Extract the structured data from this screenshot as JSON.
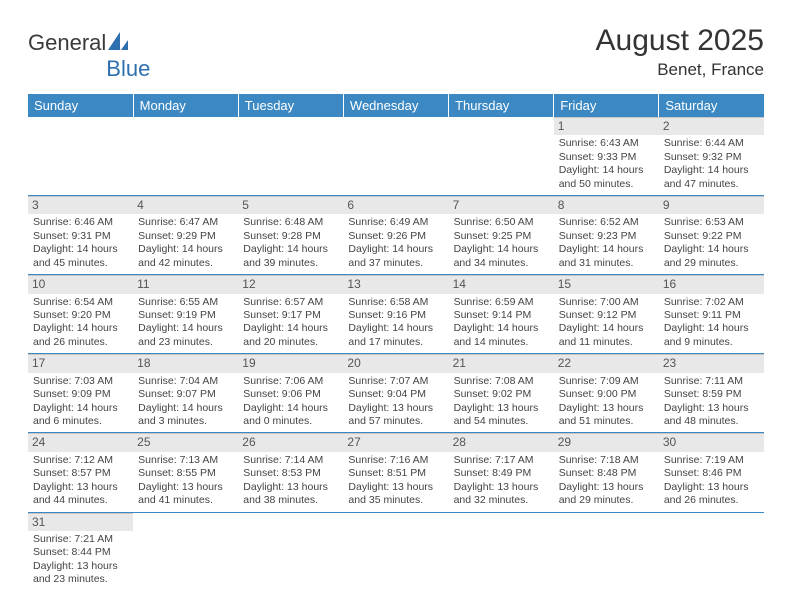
{
  "logo": {
    "word1": "General",
    "word2": "Blue"
  },
  "title": "August 2025",
  "location": "Benet, France",
  "days_of_week": [
    "Sunday",
    "Monday",
    "Tuesday",
    "Wednesday",
    "Thursday",
    "Friday",
    "Saturday"
  ],
  "colors": {
    "header_bg": "#3b88c3",
    "header_fg": "#ffffff",
    "daynum_bg": "#e8e8e8",
    "cell_border": "#3b88c3",
    "text": "#333333"
  },
  "weeks": [
    [
      null,
      null,
      null,
      null,
      null,
      {
        "num": "1",
        "sunrise": "6:43 AM",
        "sunset": "9:33 PM",
        "daylight": "14 hours and 50 minutes."
      },
      {
        "num": "2",
        "sunrise": "6:44 AM",
        "sunset": "9:32 PM",
        "daylight": "14 hours and 47 minutes."
      }
    ],
    [
      {
        "num": "3",
        "sunrise": "6:46 AM",
        "sunset": "9:31 PM",
        "daylight": "14 hours and 45 minutes."
      },
      {
        "num": "4",
        "sunrise": "6:47 AM",
        "sunset": "9:29 PM",
        "daylight": "14 hours and 42 minutes."
      },
      {
        "num": "5",
        "sunrise": "6:48 AM",
        "sunset": "9:28 PM",
        "daylight": "14 hours and 39 minutes."
      },
      {
        "num": "6",
        "sunrise": "6:49 AM",
        "sunset": "9:26 PM",
        "daylight": "14 hours and 37 minutes."
      },
      {
        "num": "7",
        "sunrise": "6:50 AM",
        "sunset": "9:25 PM",
        "daylight": "14 hours and 34 minutes."
      },
      {
        "num": "8",
        "sunrise": "6:52 AM",
        "sunset": "9:23 PM",
        "daylight": "14 hours and 31 minutes."
      },
      {
        "num": "9",
        "sunrise": "6:53 AM",
        "sunset": "9:22 PM",
        "daylight": "14 hours and 29 minutes."
      }
    ],
    [
      {
        "num": "10",
        "sunrise": "6:54 AM",
        "sunset": "9:20 PM",
        "daylight": "14 hours and 26 minutes."
      },
      {
        "num": "11",
        "sunrise": "6:55 AM",
        "sunset": "9:19 PM",
        "daylight": "14 hours and 23 minutes."
      },
      {
        "num": "12",
        "sunrise": "6:57 AM",
        "sunset": "9:17 PM",
        "daylight": "14 hours and 20 minutes."
      },
      {
        "num": "13",
        "sunrise": "6:58 AM",
        "sunset": "9:16 PM",
        "daylight": "14 hours and 17 minutes."
      },
      {
        "num": "14",
        "sunrise": "6:59 AM",
        "sunset": "9:14 PM",
        "daylight": "14 hours and 14 minutes."
      },
      {
        "num": "15",
        "sunrise": "7:00 AM",
        "sunset": "9:12 PM",
        "daylight": "14 hours and 11 minutes."
      },
      {
        "num": "16",
        "sunrise": "7:02 AM",
        "sunset": "9:11 PM",
        "daylight": "14 hours and 9 minutes."
      }
    ],
    [
      {
        "num": "17",
        "sunrise": "7:03 AM",
        "sunset": "9:09 PM",
        "daylight": "14 hours and 6 minutes."
      },
      {
        "num": "18",
        "sunrise": "7:04 AM",
        "sunset": "9:07 PM",
        "daylight": "14 hours and 3 minutes."
      },
      {
        "num": "19",
        "sunrise": "7:06 AM",
        "sunset": "9:06 PM",
        "daylight": "14 hours and 0 minutes."
      },
      {
        "num": "20",
        "sunrise": "7:07 AM",
        "sunset": "9:04 PM",
        "daylight": "13 hours and 57 minutes."
      },
      {
        "num": "21",
        "sunrise": "7:08 AM",
        "sunset": "9:02 PM",
        "daylight": "13 hours and 54 minutes."
      },
      {
        "num": "22",
        "sunrise": "7:09 AM",
        "sunset": "9:00 PM",
        "daylight": "13 hours and 51 minutes."
      },
      {
        "num": "23",
        "sunrise": "7:11 AM",
        "sunset": "8:59 PM",
        "daylight": "13 hours and 48 minutes."
      }
    ],
    [
      {
        "num": "24",
        "sunrise": "7:12 AM",
        "sunset": "8:57 PM",
        "daylight": "13 hours and 44 minutes."
      },
      {
        "num": "25",
        "sunrise": "7:13 AM",
        "sunset": "8:55 PM",
        "daylight": "13 hours and 41 minutes."
      },
      {
        "num": "26",
        "sunrise": "7:14 AM",
        "sunset": "8:53 PM",
        "daylight": "13 hours and 38 minutes."
      },
      {
        "num": "27",
        "sunrise": "7:16 AM",
        "sunset": "8:51 PM",
        "daylight": "13 hours and 35 minutes."
      },
      {
        "num": "28",
        "sunrise": "7:17 AM",
        "sunset": "8:49 PM",
        "daylight": "13 hours and 32 minutes."
      },
      {
        "num": "29",
        "sunrise": "7:18 AM",
        "sunset": "8:48 PM",
        "daylight": "13 hours and 29 minutes."
      },
      {
        "num": "30",
        "sunrise": "7:19 AM",
        "sunset": "8:46 PM",
        "daylight": "13 hours and 26 minutes."
      }
    ],
    [
      {
        "num": "31",
        "sunrise": "7:21 AM",
        "sunset": "8:44 PM",
        "daylight": "13 hours and 23 minutes."
      },
      null,
      null,
      null,
      null,
      null,
      null
    ]
  ],
  "labels": {
    "sunrise": "Sunrise: ",
    "sunset": "Sunset: ",
    "daylight": "Daylight: "
  }
}
